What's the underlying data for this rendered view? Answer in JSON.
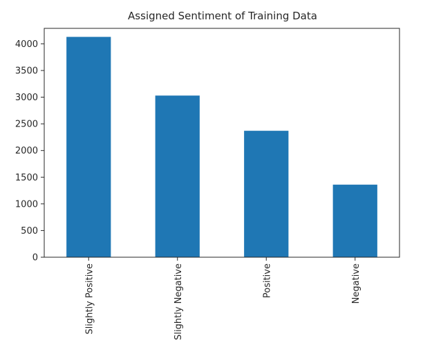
{
  "chart_data": {
    "type": "bar",
    "title": "Assigned Sentiment of Training Data",
    "xlabel": "",
    "ylabel": "",
    "categories": [
      "Slightly Positive",
      "Slightly Negative",
      "Positive",
      "Negative"
    ],
    "values": [
      4130,
      3030,
      2370,
      1360
    ],
    "ylim": [
      0,
      4290
    ],
    "yticks": [
      0,
      500,
      1000,
      1500,
      2000,
      2500,
      3000,
      3500,
      4000
    ],
    "bar_color": "#1f77b4",
    "grid": false,
    "legend": "none",
    "xtick_rotation": "vertical"
  }
}
